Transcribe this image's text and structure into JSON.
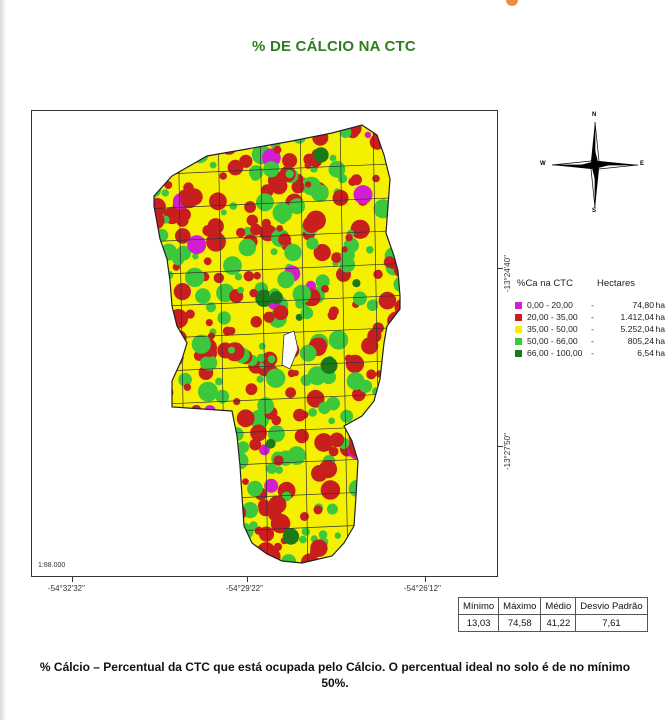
{
  "title": "% DE CÁLCIO NA CTC",
  "map": {
    "scale": "1:88.000",
    "lon_labels": [
      "-54°32'32\"",
      "-54°29'22\"",
      "-54°26'12\""
    ],
    "lat_labels": [
      "-13°24'40\"",
      "-13°27'50\""
    ]
  },
  "compass": {
    "n": "N",
    "s": "S",
    "e": "E",
    "w": "W"
  },
  "legend": {
    "header_class": "%Ca na CTC",
    "header_area": "Hectares",
    "items": [
      {
        "range": "0,00 - 20,00",
        "dash": "-",
        "value": "74,80",
        "unit": "ha",
        "color": "#d21ed2"
      },
      {
        "range": "20,00 - 35,00",
        "dash": "-",
        "value": "1.412,04",
        "unit": "ha",
        "color": "#c81e1e"
      },
      {
        "range": "35,00 - 50,00",
        "dash": "-",
        "value": "5.252,04",
        "unit": "ha",
        "color": "#f5f000"
      },
      {
        "range": "50,00 - 66,00",
        "dash": "-",
        "value": "805,24",
        "unit": "ha",
        "color": "#3cc83c"
      },
      {
        "range": "66,00 - 100,00",
        "dash": "-",
        "value": "6,54",
        "unit": "ha",
        "color": "#1a7a1a"
      }
    ]
  },
  "stats": {
    "headers": [
      "Mínimo",
      "Máximo",
      "Médio",
      "Desvio Padrão"
    ],
    "values": [
      "13,03",
      "74,58",
      "41,22",
      "7,61"
    ]
  },
  "footnote": "% Cálcio – Percentual da CTC que está ocupada pelo Cálcio. O percentual ideal no solo é de no mínimo 50%."
}
